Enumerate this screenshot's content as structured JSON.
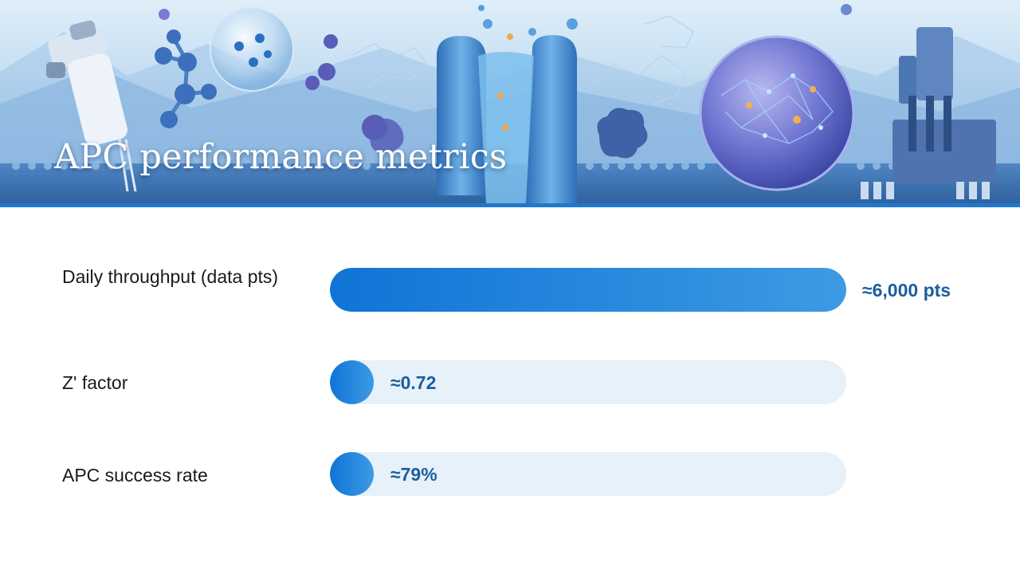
{
  "slide": {
    "title": "APC performance metrics"
  },
  "colors": {
    "accent": "#1f78cf",
    "bar_fill_start": "#0f74d6",
    "bar_fill_end": "#3d9ae4",
    "track": "#e6f1fa",
    "value_text": "#1a5e9e"
  },
  "chart_data": {
    "type": "bar",
    "orientation": "horizontal",
    "categories": [
      "Daily throughput (data pts)",
      "Z' factor",
      "APC success rate"
    ],
    "value_labels": [
      "≈6,000 pts",
      "≈0.72",
      "≈79%"
    ],
    "fill_fraction": [
      1.0,
      0.085,
      0.085
    ],
    "values": [
      6000,
      0.72,
      79
    ]
  }
}
